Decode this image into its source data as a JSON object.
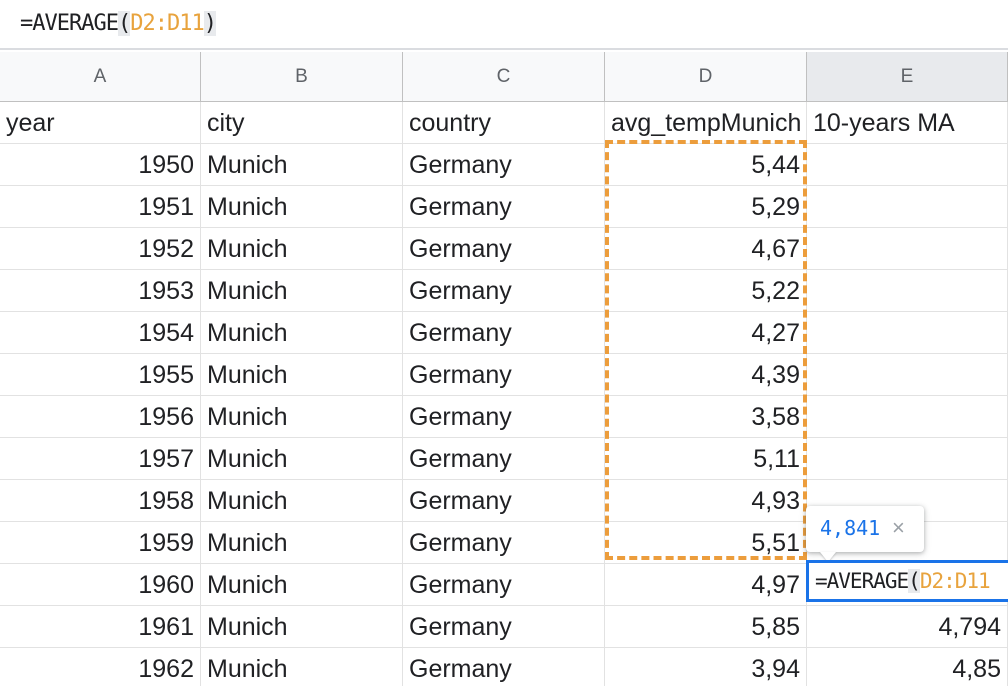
{
  "formula_bar": {
    "prefix": "=AVERAGE",
    "open_paren": "(",
    "range": "D2:D11",
    "close_paren": ")"
  },
  "columns": [
    "A",
    "B",
    "C",
    "D",
    "E"
  ],
  "header_row": {
    "a": "year",
    "b": "city",
    "c": "country",
    "d": "avg_tempMunich",
    "e": "10-years MA"
  },
  "rows": [
    {
      "year": "1950",
      "city": "Munich",
      "country": "Germany",
      "temp": "5,44",
      "ma": ""
    },
    {
      "year": "1951",
      "city": "Munich",
      "country": "Germany",
      "temp": "5,29",
      "ma": ""
    },
    {
      "year": "1952",
      "city": "Munich",
      "country": "Germany",
      "temp": "4,67",
      "ma": ""
    },
    {
      "year": "1953",
      "city": "Munich",
      "country": "Germany",
      "temp": "5,22",
      "ma": ""
    },
    {
      "year": "1954",
      "city": "Munich",
      "country": "Germany",
      "temp": "4,27",
      "ma": ""
    },
    {
      "year": "1955",
      "city": "Munich",
      "country": "Germany",
      "temp": "4,39",
      "ma": ""
    },
    {
      "year": "1956",
      "city": "Munich",
      "country": "Germany",
      "temp": "3,58",
      "ma": ""
    },
    {
      "year": "1957",
      "city": "Munich",
      "country": "Germany",
      "temp": "5,11",
      "ma": ""
    },
    {
      "year": "1958",
      "city": "Munich",
      "country": "Germany",
      "temp": "4,93",
      "ma": ""
    },
    {
      "year": "1959",
      "city": "Munich",
      "country": "Germany",
      "temp": "5,51",
      "ma": ""
    },
    {
      "year": "1960",
      "city": "Munich",
      "country": "Germany",
      "temp": "4,97",
      "ma": ""
    },
    {
      "year": "1961",
      "city": "Munich",
      "country": "Germany",
      "temp": "5,85",
      "ma": "4,794"
    },
    {
      "year": "1962",
      "city": "Munich",
      "country": "Germany",
      "temp": "3,94",
      "ma": "4,85"
    }
  ],
  "active_cell": {
    "prefix": "=AVERAGE",
    "open_paren": "(",
    "range": "D2:D11"
  },
  "tooltip": {
    "value": "4,841",
    "close_glyph": "×"
  },
  "colors": {
    "range_highlight": "#ec9d3c",
    "active_border": "#1a73e8",
    "preview_value": "#1a73e8"
  }
}
